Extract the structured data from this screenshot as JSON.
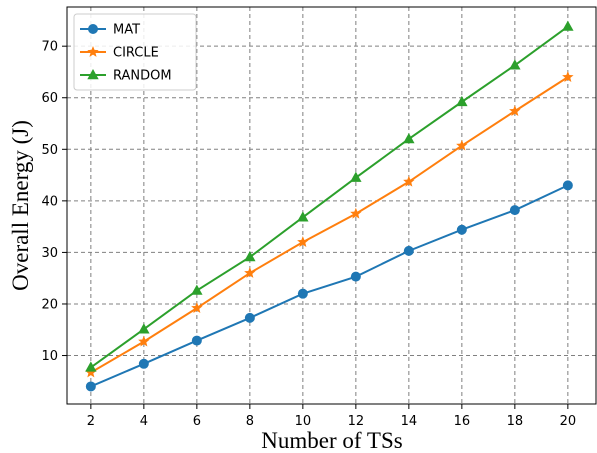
{
  "chart_data": {
    "type": "line",
    "title": "",
    "xlabel": "Number of TSs",
    "ylabel": "Overall Energy (J)",
    "x": [
      2,
      4,
      6,
      8,
      10,
      12,
      14,
      16,
      18,
      20
    ],
    "xticks": [
      2,
      4,
      6,
      8,
      10,
      12,
      14,
      16,
      18,
      20
    ],
    "yticks": [
      10,
      20,
      30,
      40,
      50,
      60,
      70
    ],
    "xlim": [
      1.1,
      21.1
    ],
    "ylim": [
      0.6,
      77.6
    ],
    "grid": true,
    "legend_position": "top-left",
    "series": [
      {
        "name": "MAT",
        "color": "#1f77b4",
        "marker": "circle",
        "values": [
          4.0,
          8.4,
          12.9,
          17.3,
          22.0,
          25.3,
          30.3,
          34.4,
          38.2,
          43.0
        ]
      },
      {
        "name": "CIRCLE",
        "color": "#ff7f0e",
        "marker": "star",
        "values": [
          6.7,
          12.7,
          19.2,
          26.0,
          32.0,
          37.5,
          43.7,
          50.7,
          57.4,
          64.0
        ]
      },
      {
        "name": "RANDOM",
        "color": "#2ca02c",
        "marker": "triangle",
        "values": [
          7.7,
          15.1,
          22.6,
          29.1,
          36.8,
          44.5,
          52.0,
          59.2,
          66.3,
          73.8
        ]
      }
    ]
  }
}
